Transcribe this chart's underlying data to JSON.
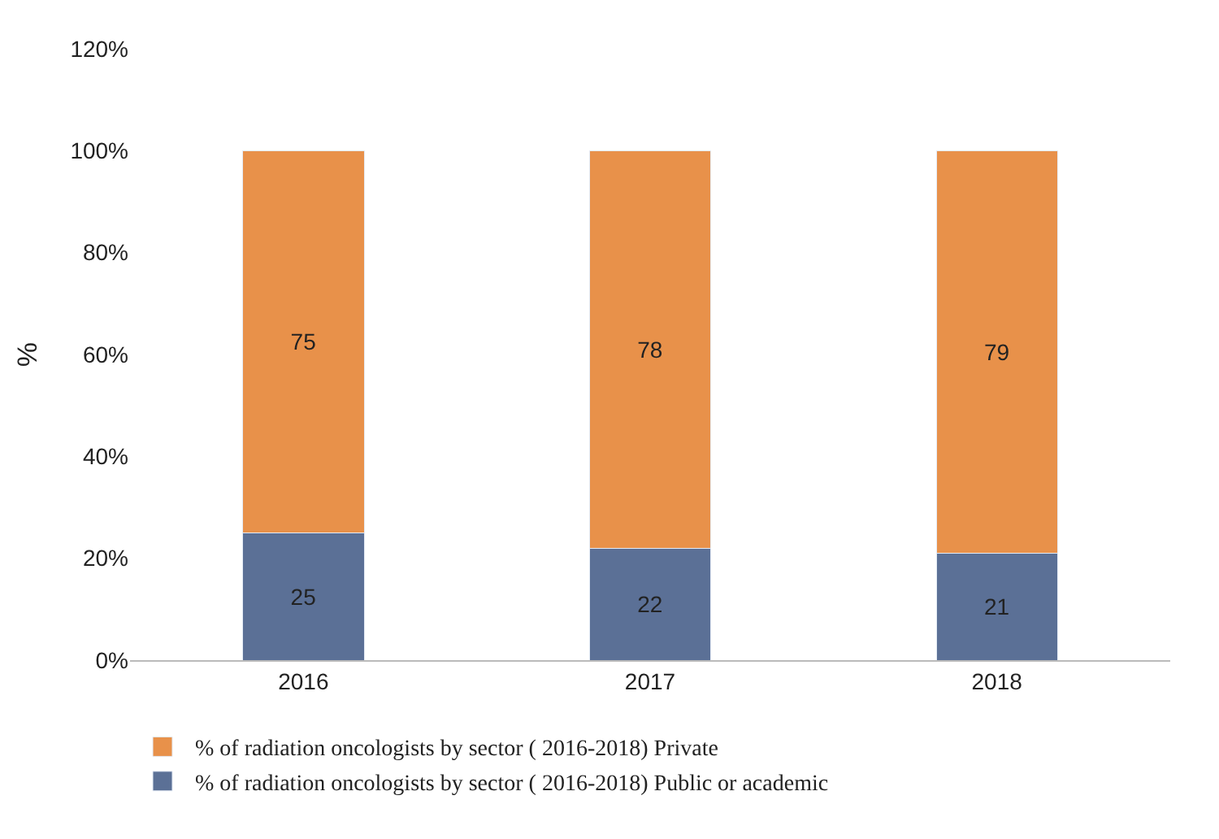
{
  "chart_data": {
    "type": "bar",
    "stacked": true,
    "ylabel": "%",
    "categories": [
      "2016",
      "2017",
      "2018"
    ],
    "series": [
      {
        "name": "% of radiation oncologists by sector ( 2016-2018) Public or academic",
        "color": "#5b7096",
        "values": [
          25,
          22,
          21
        ]
      },
      {
        "name": "% of radiation oncologists by sector ( 2016-2018) Private",
        "color": "#e8914a",
        "values": [
          75,
          78,
          79
        ]
      }
    ],
    "ylim": [
      0,
      120
    ],
    "yticks": [
      {
        "value": 0,
        "label": "0%"
      },
      {
        "value": 20,
        "label": "20%"
      },
      {
        "value": 40,
        "label": "40%"
      },
      {
        "value": 60,
        "label": "60%"
      },
      {
        "value": 80,
        "label": "80%"
      },
      {
        "value": 100,
        "label": "100%"
      },
      {
        "value": 120,
        "label": "120%"
      }
    ],
    "data_labels": true,
    "legend": "bottom"
  }
}
